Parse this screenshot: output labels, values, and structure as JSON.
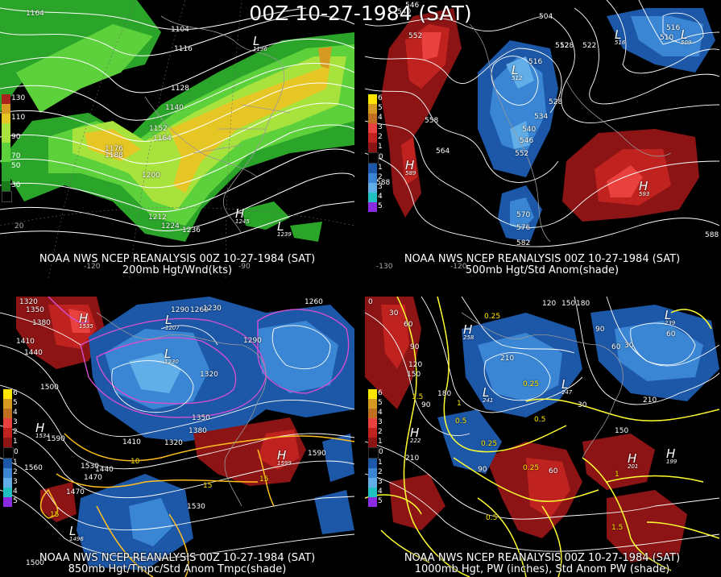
{
  "main_title": "00Z 10-27-1984 (SAT)",
  "panels": [
    {
      "caption_line1": "NOAA NWS NCEP REANALYSIS 00Z 10-27-1984 (SAT)",
      "caption_line2": "200mb Hgt/Wnd(kts)",
      "legend": [
        "130",
        "110",
        "90",
        "70",
        "50",
        "30"
      ],
      "contour_labels": [
        "1164",
        "1104",
        "1116",
        "1128",
        "1140",
        "1152",
        "1164",
        "1176",
        "1188",
        "1200",
        "1212",
        "1224",
        "1236"
      ],
      "highs_lows": [
        {
          "type": "L",
          "value": "1196"
        },
        {
          "type": "H",
          "value": "1245"
        },
        {
          "type": "L",
          "value": "1239"
        }
      ],
      "ticks": [
        "20",
        "-120",
        "-90"
      ]
    },
    {
      "caption_line1": "NOAA NWS NCEP REANALYSIS 00Z 10-27-1984 (SAT)",
      "caption_line2": "500mb Hgt/Std Anom(shade)",
      "legend": [
        "6",
        "5",
        "4",
        "3",
        "2",
        "1",
        "0",
        "1",
        "2",
        "3",
        "4",
        "5"
      ],
      "contour_labels": [
        "546",
        "540",
        "552",
        "558",
        "564",
        "588",
        "516",
        "512",
        "528",
        "534",
        "540",
        "546",
        "552",
        "570",
        "576",
        "582",
        "504",
        "528",
        "522",
        "516",
        "510",
        "588"
      ],
      "highs_lows": [
        {
          "type": "L",
          "value": "512"
        },
        {
          "type": "H",
          "value": "589"
        },
        {
          "type": "L",
          "value": "516"
        },
        {
          "type": "L",
          "value": "509"
        },
        {
          "type": "H",
          "value": "593"
        }
      ],
      "ticks": [
        "-130",
        "-120"
      ]
    },
    {
      "caption_line1": "NOAA NWS NCEP REANALYSIS 00Z 10-27-1984 (SAT)",
      "caption_line2": "850mb Hgt/Tmpc/Std Anom Tmpc(shade)",
      "legend": [
        "6",
        "5",
        "4",
        "3",
        "2",
        "1",
        "0",
        "1",
        "2",
        "3",
        "4",
        "5"
      ],
      "contour_labels": [
        "1320",
        "1350",
        "1380",
        "1410",
        "1440",
        "1470",
        "1500",
        "1530",
        "1560",
        "1590",
        "1320",
        "1350",
        "1380",
        "1410",
        "1440",
        "1470",
        "1290",
        "1260",
        "1230",
        "1290",
        "1260",
        "1320",
        "1590",
        "1530",
        "1500"
      ],
      "temp_labels": [
        "10",
        "15",
        "15",
        "15"
      ],
      "highs_lows": [
        {
          "type": "H",
          "value": "1535"
        },
        {
          "type": "L",
          "value": "1230"
        },
        {
          "type": "L",
          "value": "1207"
        },
        {
          "type": "H",
          "value": "1599"
        },
        {
          "type": "L",
          "value": "1496"
        },
        {
          "type": "H",
          "value": "1534"
        }
      ],
      "ticks": []
    },
    {
      "caption_line1": "NOAA NWS NCEP REANALYSIS 00Z 10-27-1984 (SAT)",
      "caption_line2": "1000mb Hgt, PW (inches), Std Anom PW (shade)",
      "legend": [
        "6",
        "5",
        "4",
        "3",
        "2",
        "1",
        "0",
        "1",
        "2",
        "3",
        "4",
        "5"
      ],
      "contour_labels": [
        "0",
        "30",
        "60",
        "90",
        "120",
        "150",
        "180",
        "210",
        "120",
        "150",
        "180",
        "90",
        "60",
        "30",
        "210",
        "210",
        "150",
        "90",
        "60",
        "30",
        "60",
        "90"
      ],
      "pw_labels": [
        "0.25",
        "0.25",
        "1.5",
        "1",
        "0.5",
        "0.25",
        "0.5",
        "0.25",
        "0.5",
        "1",
        "1.5"
      ],
      "highs_lows": [
        {
          "type": "H",
          "value": "258"
        },
        {
          "type": "L",
          "value": "241"
        },
        {
          "type": "L",
          "value": "247"
        },
        {
          "type": "H",
          "value": "222"
        },
        {
          "type": "H",
          "value": "201"
        },
        {
          "type": "H",
          "value": "199"
        },
        {
          "type": "L",
          "value": "239"
        }
      ],
      "ticks": []
    }
  ],
  "colors": {
    "wind_30": "#2aa52a",
    "wind_50": "#5dd13c",
    "wind_70": "#a8e23d",
    "wind_90": "#e6c625",
    "wind_110": "#d69a22",
    "wind_130": "#a8221e",
    "anom_pos3": "#e8413e",
    "anom_pos2": "#c0231f",
    "anom_pos1": "#8c1414",
    "anom_neg1": "#1c57a8",
    "anom_neg2": "#3a86d4",
    "anom_neg3": "#62aee8",
    "contour": "#ffffff",
    "temp": "#ffcc22",
    "pw": "#ffff33",
    "magenta": "#e050e0"
  }
}
